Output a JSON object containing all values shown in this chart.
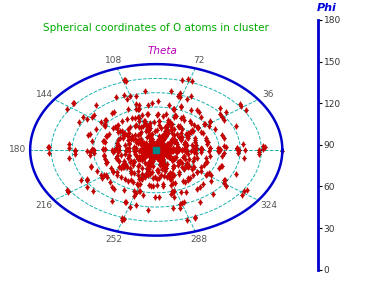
{
  "title": "Spherical coordinates of O atoms in cluster",
  "title_color": "#00aa00",
  "xlabel": "Theta",
  "xlabel_color": "#bb00bb",
  "ylabel": "Phi",
  "ylabel_color": "#0000dd",
  "phi_ticks": [
    0,
    30,
    60,
    90,
    120,
    150,
    180
  ],
  "theta_label_vals": [
    72,
    36,
    324,
    288,
    252,
    216,
    180,
    144,
    108
  ],
  "grid_color": "#00aaaa",
  "border_color": "#0000cc",
  "marker_color": "#cc0000",
  "cross_color": "#000000",
  "center_marker_color": "#008888",
  "bg_color": "#ffffff",
  "figsize": [
    3.72,
    2.84
  ],
  "dpi": 100,
  "ellipse_a": 1.0,
  "ellipse_b": 0.68
}
